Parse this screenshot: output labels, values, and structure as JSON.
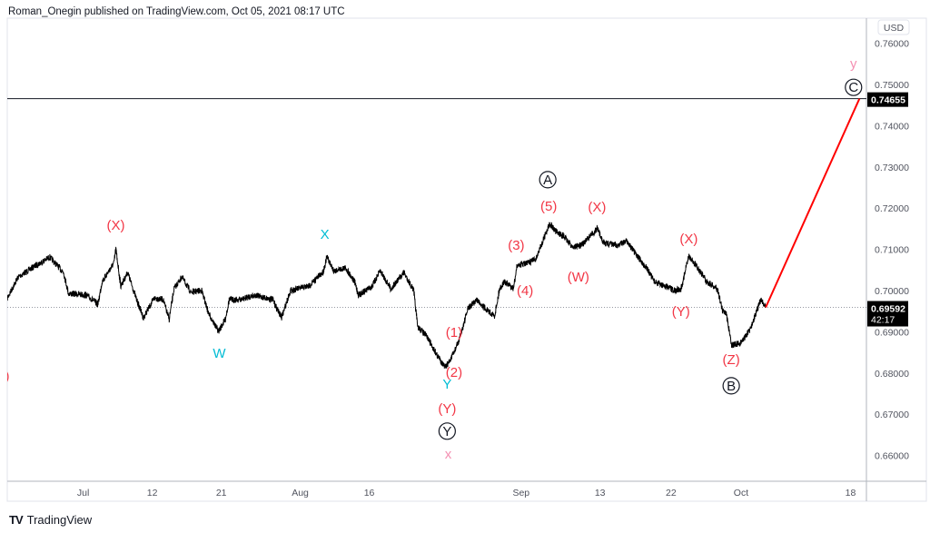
{
  "header": {
    "text": "Roman_Onegin published on TradingView.com, Oct 05, 2021 08:17 UTC"
  },
  "footer": {
    "brand": "TradingView",
    "brand_mark": "TV"
  },
  "colors": {
    "wave_red": "#f23645",
    "wave_cyan": "#00bcd4",
    "wave_pink": "#f48fb1",
    "projection": "#ff0000",
    "price_line": "#000000"
  },
  "chart_data": {
    "type": "line",
    "title": "",
    "currency": "USD",
    "xlabel": "",
    "ylabel": "",
    "x_unit": "trading days",
    "xlim": [
      0,
      87.1
    ],
    "ylim": [
      0.6555,
      0.765
    ],
    "grid": false,
    "price_ticks": [
      "0.76000",
      "0.75000",
      "0.74000",
      "0.73000",
      "0.72000",
      "0.71000",
      "0.70000",
      "0.69000",
      "0.68000",
      "0.67000",
      "0.66000"
    ],
    "time_ticks": [
      {
        "x": 7.7,
        "label": "Jul"
      },
      {
        "x": 14.7,
        "label": "12"
      },
      {
        "x": 21.7,
        "label": "21"
      },
      {
        "x": 29.7,
        "label": "Aug"
      },
      {
        "x": 36.7,
        "label": "16"
      },
      {
        "x": 52.1,
        "label": "Sep"
      },
      {
        "x": 60.1,
        "label": "13"
      },
      {
        "x": 67.3,
        "label": "22"
      },
      {
        "x": 74.4,
        "label": "Oct"
      },
      {
        "x": 85.5,
        "label": "18"
      }
    ],
    "series": [
      {
        "name": "Price",
        "points": [
          [
            0,
            0.6982
          ],
          [
            1.1,
            0.7033
          ],
          [
            2.5,
            0.7055
          ],
          [
            4.3,
            0.7081
          ],
          [
            5.7,
            0.7044
          ],
          [
            6.2,
            0.6993
          ],
          [
            8.0,
            0.6989
          ],
          [
            9.2,
            0.6967
          ],
          [
            9.6,
            0.7022
          ],
          [
            10.8,
            0.7066
          ],
          [
            11.0,
            0.7101
          ],
          [
            11.5,
            0.7011
          ],
          [
            12.2,
            0.7044
          ],
          [
            13.1,
            0.6978
          ],
          [
            13.8,
            0.6934
          ],
          [
            14.9,
            0.6982
          ],
          [
            15.8,
            0.6978
          ],
          [
            16.4,
            0.693
          ],
          [
            16.9,
            0.7004
          ],
          [
            17.7,
            0.7033
          ],
          [
            18.6,
            0.6996
          ],
          [
            19.7,
            0.7
          ],
          [
            20.4,
            0.6945
          ],
          [
            21.4,
            0.6901
          ],
          [
            22.1,
            0.693
          ],
          [
            22.5,
            0.6978
          ],
          [
            23.7,
            0.6978
          ],
          [
            25.0,
            0.6989
          ],
          [
            26.9,
            0.6978
          ],
          [
            27.8,
            0.6934
          ],
          [
            28.7,
            0.7
          ],
          [
            30.6,
            0.7011
          ],
          [
            31.5,
            0.7033
          ],
          [
            32.0,
            0.7044
          ],
          [
            32.4,
            0.7081
          ],
          [
            33.1,
            0.7048
          ],
          [
            34.3,
            0.7055
          ],
          [
            35.2,
            0.7022
          ],
          [
            35.6,
            0.6989
          ],
          [
            37.0,
            0.7011
          ],
          [
            37.8,
            0.7048
          ],
          [
            38.9,
            0.7004
          ],
          [
            40.2,
            0.7044
          ],
          [
            41.2,
            0.7
          ],
          [
            41.6,
            0.6912
          ],
          [
            42.5,
            0.689
          ],
          [
            43.5,
            0.6846
          ],
          [
            44.4,
            0.6813
          ],
          [
            45.0,
            0.6835
          ],
          [
            45.8,
            0.6879
          ],
          [
            46.7,
            0.6956
          ],
          [
            47.6,
            0.6978
          ],
          [
            48.5,
            0.6956
          ],
          [
            49.4,
            0.6938
          ],
          [
            49.9,
            0.7004
          ],
          [
            50.4,
            0.7022
          ],
          [
            51.3,
            0.7004
          ],
          [
            51.7,
            0.7062
          ],
          [
            52.7,
            0.7066
          ],
          [
            53.6,
            0.7077
          ],
          [
            54.3,
            0.7121
          ],
          [
            55.0,
            0.7163
          ],
          [
            55.6,
            0.7143
          ],
          [
            56.4,
            0.7132
          ],
          [
            57.3,
            0.7106
          ],
          [
            58.2,
            0.711
          ],
          [
            59.1,
            0.7132
          ],
          [
            59.8,
            0.715
          ],
          [
            60.5,
            0.7115
          ],
          [
            61.9,
            0.711
          ],
          [
            62.8,
            0.7121
          ],
          [
            63.7,
            0.7088
          ],
          [
            64.8,
            0.7055
          ],
          [
            65.6,
            0.7022
          ],
          [
            66.8,
            0.7009
          ],
          [
            67.6,
            0.7
          ],
          [
            68.3,
            0.7004
          ],
          [
            69.1,
            0.7084
          ],
          [
            70.0,
            0.7055
          ],
          [
            70.9,
            0.7022
          ],
          [
            72.0,
            0.7004
          ],
          [
            72.5,
            0.6952
          ],
          [
            72.9,
            0.6945
          ],
          [
            73.4,
            0.6868
          ],
          [
            74.3,
            0.6872
          ],
          [
            75.2,
            0.6901
          ],
          [
            75.9,
            0.6945
          ],
          [
            76.4,
            0.6978
          ],
          [
            76.9,
            0.6959
          ]
        ]
      }
    ],
    "projection": {
      "from": [
        76.9,
        0.69592
      ],
      "to": [
        86.4,
        0.74655
      ]
    },
    "horizontal_line": {
      "price": 0.74655,
      "label": "0.74655"
    },
    "last_price": {
      "price": 0.69592,
      "label": "0.69592",
      "countdown": "42:17"
    },
    "wave_labels": [
      {
        "x": 11.0,
        "y": 0.7159,
        "text": "(X)",
        "color": "red",
        "circled": false
      },
      {
        "x": 0.0,
        "y": 0.6793,
        "text": ")",
        "color": "red",
        "circled": false
      },
      {
        "x": 21.5,
        "y": 0.6848,
        "text": "W",
        "color": "cyan",
        "circled": false
      },
      {
        "x": 32.2,
        "y": 0.7137,
        "text": "X",
        "color": "cyan",
        "circled": false
      },
      {
        "x": 45.3,
        "y": 0.6899,
        "text": "(1)",
        "color": "red",
        "circled": false
      },
      {
        "x": 45.3,
        "y": 0.6802,
        "text": "(2)",
        "color": "red",
        "circled": false
      },
      {
        "x": 44.6,
        "y": 0.6773,
        "text": "Y",
        "color": "cyan",
        "circled": false
      },
      {
        "x": 44.6,
        "y": 0.6714,
        "text": "(Y)",
        "color": "red",
        "circled": false
      },
      {
        "x": 44.6,
        "y": 0.6659,
        "text": "Y",
        "color": "black",
        "circled": true
      },
      {
        "x": 44.7,
        "y": 0.6604,
        "text": "x",
        "color": "pink",
        "circled": false
      },
      {
        "x": 51.6,
        "y": 0.711,
        "text": "(3)",
        "color": "red",
        "circled": false
      },
      {
        "x": 52.5,
        "y": 0.7,
        "text": "(4)",
        "color": "red",
        "circled": false
      },
      {
        "x": 54.9,
        "y": 0.7205,
        "text": "(5)",
        "color": "red",
        "circled": false
      },
      {
        "x": 54.8,
        "y": 0.7269,
        "text": "A",
        "color": "black",
        "circled": true
      },
      {
        "x": 59.8,
        "y": 0.7203,
        "text": "(X)",
        "color": "red",
        "circled": false
      },
      {
        "x": 57.9,
        "y": 0.7033,
        "text": "(W)",
        "color": "red",
        "circled": false
      },
      {
        "x": 69.1,
        "y": 0.7126,
        "text": "(X)",
        "color": "red",
        "circled": false
      },
      {
        "x": 68.3,
        "y": 0.6949,
        "text": "(Y)",
        "color": "red",
        "circled": false
      },
      {
        "x": 73.4,
        "y": 0.6833,
        "text": "(Z)",
        "color": "red",
        "circled": false
      },
      {
        "x": 73.4,
        "y": 0.6769,
        "text": "B",
        "color": "black",
        "circled": true
      },
      {
        "x": 85.8,
        "y": 0.7551,
        "text": "y",
        "color": "pink",
        "circled": false
      },
      {
        "x": 85.8,
        "y": 0.7493,
        "text": "C",
        "color": "black",
        "circled": true
      }
    ]
  }
}
